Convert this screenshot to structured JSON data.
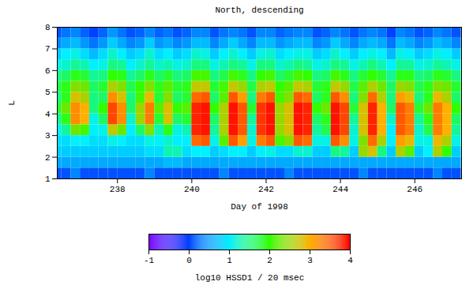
{
  "chart_data": {
    "type": "heatmap",
    "title": "North, descending",
    "x_label": "Day of 1998",
    "y_label": "L",
    "xlim": [
      236.38,
      247.26
    ],
    "ylim": [
      1,
      8
    ],
    "xticks": [
      238,
      240,
      242,
      244,
      246
    ],
    "yticks": [
      1,
      2,
      3,
      4,
      5,
      6,
      7,
      8
    ],
    "x_edges": [
      236.25,
      236.5,
      236.75,
      237.0,
      237.25,
      237.5,
      237.75,
      238.0,
      238.25,
      238.5,
      238.75,
      239.0,
      239.25,
      239.5,
      239.75,
      240.0,
      240.25,
      240.5,
      240.75,
      241.0,
      241.25,
      241.5,
      241.75,
      242.0,
      242.25,
      242.5,
      242.75,
      243.0,
      243.25,
      243.5,
      243.75,
      244.0,
      244.25,
      244.5,
      244.75,
      245.0,
      245.25,
      245.5,
      245.75,
      246.0,
      246.25,
      246.5,
      246.75,
      247.0,
      247.25
    ],
    "y_edges": [
      1,
      1.5,
      2,
      2.5,
      3,
      3.5,
      4,
      4.5,
      5,
      5.5,
      6,
      6.5,
      7,
      7.5,
      8
    ],
    "z": [
      [
        0.1,
        0.1,
        0.4,
        0.1,
        0.1,
        0.1,
        0.1,
        0.1,
        0.1,
        0.1,
        0.4,
        0.1,
        0.1,
        0.1,
        0.1,
        0.1,
        0.1,
        0.1,
        0.4,
        0.1,
        0.1,
        0.1,
        0.1,
        0.1,
        0.1,
        0.4,
        0.1,
        0.1,
        0.1,
        0.1,
        0.1,
        0.1,
        0.1,
        0.4,
        0.1,
        0.1,
        0.1,
        0.1,
        0.1,
        0.1,
        0.1,
        0.4,
        0.1,
        0.1
      ],
      [
        0.6,
        0.6,
        0.6,
        0.6,
        0.6,
        0.6,
        0.6,
        0.6,
        0.6,
        0.6,
        0.6,
        0.6,
        0.7,
        0.7,
        0.6,
        0.6,
        0.6,
        0.6,
        0.6,
        0.6,
        0.6,
        0.6,
        0.6,
        0.6,
        0.6,
        0.6,
        0.6,
        0.6,
        0.6,
        0.6,
        0.6,
        0.6,
        0.6,
        0.6,
        0.6,
        0.6,
        0.6,
        0.6,
        0.6,
        0.6,
        0.6,
        0.6,
        0.6,
        0.6
      ],
      [
        0.8,
        0.8,
        0.8,
        0.8,
        0.8,
        0.8,
        0.8,
        0.8,
        0.8,
        0.8,
        0.9,
        0.9,
        1.3,
        1.3,
        0.9,
        1.0,
        1.0,
        0.8,
        0.9,
        1.0,
        1.0,
        0.8,
        1.0,
        1.1,
        0.9,
        0.9,
        1.2,
        1.2,
        0.8,
        0.8,
        1.5,
        1.4,
        0.8,
        2.5,
        2.8,
        1.5,
        0.8,
        2.6,
        2.2,
        0.8,
        1.0,
        2.6,
        2.0,
        0.8
      ],
      [
        0.9,
        0.9,
        1.0,
        1.0,
        0.9,
        0.9,
        1.1,
        1.0,
        0.9,
        0.9,
        1.1,
        1.0,
        1.2,
        1.0,
        1.0,
        3.4,
        3.5,
        1.1,
        2.2,
        3.5,
        3.1,
        1.1,
        3.3,
        3.5,
        2.1,
        2.4,
        3.5,
        3.4,
        1.1,
        1.1,
        3.5,
        3.2,
        1.1,
        2.4,
        3.4,
        2.6,
        1.0,
        3.1,
        2.9,
        1.1,
        1.1,
        2.9,
        2.6,
        1.1
      ],
      [
        1.0,
        1.4,
        2.3,
        2.1,
        1.0,
        1.1,
        2.7,
        2.3,
        1.0,
        1.6,
        2.4,
        1.3,
        1.9,
        1.1,
        1.3,
        3.8,
        3.9,
        1.4,
        2.6,
        3.9,
        3.5,
        1.2,
        3.7,
        3.9,
        2.5,
        2.8,
        3.9,
        3.8,
        1.4,
        1.7,
        3.9,
        3.6,
        1.2,
        2.8,
        3.8,
        3.0,
        1.0,
        3.5,
        3.3,
        1.2,
        1.7,
        3.3,
        3.0,
        1.4
      ],
      [
        1.4,
        1.9,
        3.2,
        3.0,
        1.1,
        1.6,
        3.6,
        3.2,
        1.2,
        2.5,
        3.3,
        1.8,
        2.8,
        1.6,
        1.8,
        3.8,
        3.9,
        1.6,
        2.6,
        3.9,
        3.5,
        1.4,
        3.7,
        3.9,
        2.5,
        2.8,
        3.9,
        3.8,
        1.6,
        1.9,
        3.9,
        3.6,
        1.4,
        2.8,
        3.8,
        3.0,
        1.2,
        3.5,
        3.3,
        1.4,
        1.9,
        3.3,
        3.0,
        1.6
      ],
      [
        1.8,
        2.3,
        3.2,
        3.0,
        1.5,
        2.0,
        3.6,
        3.2,
        1.6,
        2.5,
        3.3,
        2.2,
        2.8,
        2.0,
        2.2,
        3.8,
        3.9,
        2.0,
        2.6,
        3.9,
        3.5,
        1.8,
        3.7,
        3.9,
        2.5,
        2.8,
        3.9,
        3.8,
        2.0,
        2.3,
        3.9,
        3.6,
        1.8,
        2.8,
        3.8,
        3.0,
        1.6,
        3.5,
        3.3,
        1.8,
        2.3,
        3.3,
        3.0,
        2.0
      ],
      [
        1.5,
        1.9,
        2.8,
        2.6,
        1.5,
        1.6,
        3.2,
        2.8,
        1.5,
        2.1,
        2.9,
        1.8,
        2.4,
        1.6,
        1.8,
        3.4,
        3.5,
        1.6,
        2.2,
        3.5,
        3.1,
        1.5,
        3.3,
        3.5,
        2.1,
        2.4,
        3.5,
        3.4,
        1.6,
        1.9,
        3.5,
        3.2,
        1.5,
        2.4,
        3.4,
        2.6,
        1.5,
        3.1,
        2.9,
        1.5,
        1.9,
        2.9,
        2.6,
        1.6
      ],
      [
        1.7,
        1.9,
        2.4,
        2.3,
        1.6,
        1.8,
        2.6,
        2.4,
        1.7,
        2.0,
        2.4,
        1.9,
        2.2,
        1.8,
        1.9,
        2.7,
        2.7,
        1.8,
        2.1,
        2.7,
        2.5,
        1.7,
        2.6,
        2.7,
        2.0,
        2.2,
        2.7,
        2.6,
        1.8,
        1.9,
        2.7,
        2.5,
        1.7,
        2.2,
        2.6,
        2.3,
        1.6,
        2.5,
        2.4,
        1.7,
        1.9,
        2.4,
        2.3,
        1.8
      ],
      [
        1.5,
        1.6,
        1.9,
        1.8,
        1.4,
        1.5,
        2.0,
        1.9,
        1.4,
        1.6,
        1.9,
        1.6,
        1.8,
        1.5,
        1.6,
        2.1,
        2.1,
        1.5,
        1.7,
        2.1,
        1.9,
        1.5,
        2.0,
        2.1,
        1.6,
        1.8,
        2.1,
        2.0,
        1.5,
        1.6,
        2.1,
        1.9,
        1.5,
        1.8,
        2.0,
        1.8,
        1.4,
        1.9,
        1.9,
        1.5,
        1.6,
        1.9,
        1.8,
        1.5
      ],
      [
        1.1,
        1.2,
        1.4,
        1.3,
        1.0,
        1.1,
        1.5,
        1.4,
        1.0,
        1.2,
        1.4,
        1.2,
        1.3,
        1.1,
        1.2,
        1.5,
        1.5,
        1.1,
        1.3,
        1.5,
        1.4,
        1.1,
        1.5,
        1.5,
        1.2,
        1.3,
        1.5,
        1.4,
        1.1,
        1.2,
        1.5,
        1.4,
        1.1,
        1.3,
        1.5,
        1.3,
        1.0,
        1.4,
        1.4,
        1.1,
        1.2,
        1.4,
        1.3,
        1.1
      ],
      [
        0.8,
        1.0,
        1.1,
        0.9,
        0.7,
        0.9,
        1.2,
        1.0,
        0.8,
        0.9,
        1.2,
        0.9,
        1.0,
        0.8,
        0.9,
        1.2,
        1.1,
        0.8,
        1.0,
        1.2,
        1.0,
        0.8,
        1.1,
        1.2,
        0.9,
        1.0,
        1.1,
        1.1,
        0.8,
        0.9,
        1.2,
        1.0,
        0.8,
        1.0,
        1.1,
        1.0,
        0.7,
        1.1,
        1.0,
        0.8,
        0.9,
        1.1,
        1.0,
        0.8
      ],
      [
        0.4,
        0.6,
        0.7,
        0.5,
        0.3,
        0.5,
        0.8,
        0.6,
        0.4,
        0.5,
        0.8,
        0.5,
        0.6,
        0.4,
        0.5,
        0.7,
        0.7,
        0.4,
        0.6,
        0.8,
        0.6,
        0.4,
        0.7,
        0.7,
        0.5,
        0.6,
        0.7,
        0.7,
        0.4,
        0.5,
        0.8,
        0.6,
        0.4,
        0.6,
        0.7,
        0.6,
        0.3,
        0.7,
        0.6,
        0.4,
        0.5,
        0.7,
        0.6,
        0.4
      ],
      [
        0.1,
        0.3,
        0.4,
        0.2,
        0.0,
        0.2,
        0.5,
        0.3,
        0.1,
        0.2,
        0.4,
        0.2,
        0.3,
        0.1,
        0.2,
        0.4,
        0.4,
        0.1,
        0.3,
        0.4,
        0.3,
        0.1,
        0.4,
        0.4,
        0.2,
        0.3,
        0.4,
        0.4,
        0.1,
        0.2,
        0.4,
        0.3,
        0.1,
        0.3,
        0.4,
        0.3,
        0.0,
        0.4,
        0.3,
        0.1,
        0.2,
        0.4,
        0.3,
        0.1
      ]
    ],
    "colorbar": {
      "label": "log10 HSSD1 / 20 msec",
      "range": [
        -1,
        4
      ],
      "ticks": [
        -1,
        0,
        1,
        2,
        3,
        4
      ]
    }
  }
}
